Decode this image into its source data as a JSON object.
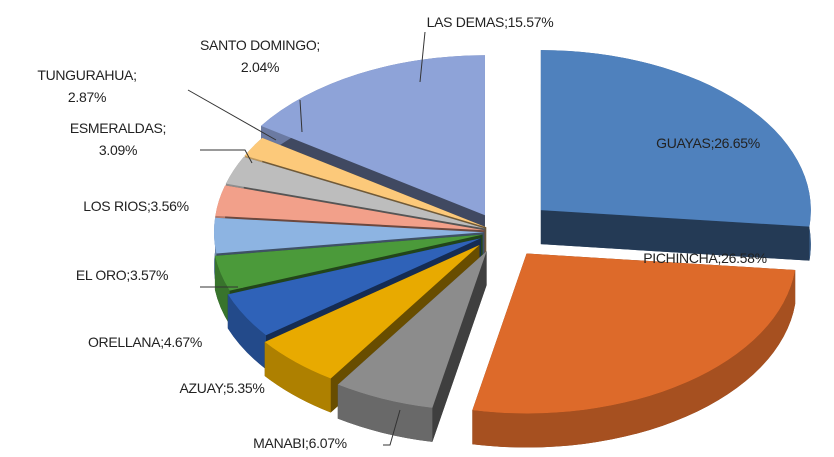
{
  "chart_data": {
    "type": "pie",
    "values": [
      26.65,
      26.58,
      6.07,
      5.35,
      4.67,
      3.57,
      3.56,
      3.09,
      2.87,
      2.04,
      15.57
    ],
    "value_labels": [
      "GUAYAS;26.65%",
      "PICHINCHA;26.58%",
      "MANABI;6.07%",
      "AZUAY;5.35%",
      "ORELLANA;4.67%",
      "EL ORO;3.57%",
      "LOS RIOS;3.56%",
      "ESMERALDAS;\n3.09%",
      "TUNGURAHUA;\n2.87%",
      "SANTO DOMINGO;\n2.04%",
      "LAS DEMAS;15.57%"
    ],
    "colors": [
      "#4f81bd",
      "#dd6a2a",
      "#8c8c8c",
      "#e8aa00",
      "#2f62b8",
      "#4b9a3a",
      "#8db4e2",
      "#f2a08a",
      "#bdbdbd",
      "#fcc97a",
      "#8ea3d8"
    ]
  }
}
